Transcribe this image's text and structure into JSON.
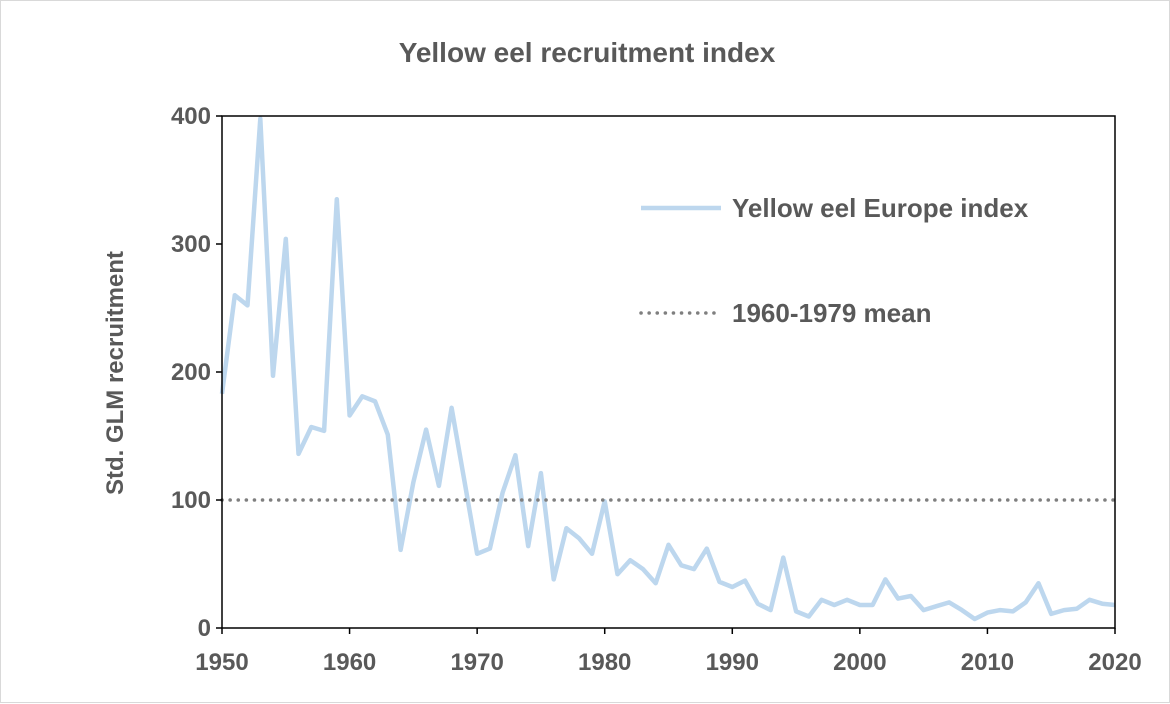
{
  "chart_data": {
    "type": "line",
    "title": "Yellow eel recruitment index",
    "xlabel": "",
    "ylabel": "Std. GLM recruitment",
    "xlim": [
      1950,
      2020
    ],
    "ylim": [
      0,
      400
    ],
    "x_ticks": [
      "1950",
      "1960",
      "1970",
      "1980",
      "1990",
      "2000",
      "2010",
      "2020"
    ],
    "y_ticks": [
      "0",
      "100",
      "200",
      "300",
      "400"
    ],
    "grid": false,
    "legend_position": "top-right",
    "series": [
      {
        "name": "Yellow eel Europe index",
        "color": "#bdd7ee",
        "style": "solid",
        "x": [
          1950,
          1951,
          1952,
          1953,
          1954,
          1955,
          1956,
          1957,
          1958,
          1959,
          1960,
          1961,
          1962,
          1963,
          1964,
          1965,
          1966,
          1967,
          1968,
          1969,
          1970,
          1971,
          1972,
          1973,
          1974,
          1975,
          1976,
          1977,
          1978,
          1979,
          1980,
          1981,
          1982,
          1983,
          1984,
          1985,
          1986,
          1987,
          1988,
          1989,
          1990,
          1991,
          1992,
          1993,
          1994,
          1995,
          1996,
          1997,
          1998,
          1999,
          2000,
          2001,
          2002,
          2003,
          2004,
          2005,
          2006,
          2007,
          2008,
          2009,
          2010,
          2011,
          2012,
          2013,
          2014,
          2015,
          2016,
          2017,
          2018,
          2019,
          2020
        ],
        "values": [
          183,
          260,
          252,
          398,
          197,
          304,
          136,
          157,
          154,
          335,
          166,
          181,
          177,
          151,
          61,
          114,
          155,
          111,
          172,
          115,
          58,
          62,
          106,
          135,
          64,
          121,
          38,
          78,
          70,
          58,
          99,
          42,
          53,
          46,
          35,
          65,
          49,
          46,
          62,
          36,
          32,
          37,
          19,
          14,
          55,
          13,
          9,
          22,
          18,
          22,
          18,
          18,
          38,
          23,
          25,
          14,
          17,
          20,
          14,
          7,
          12,
          14,
          13,
          20,
          35,
          11,
          14,
          15,
          22,
          19,
          18
        ]
      },
      {
        "name": "1960-1979 mean",
        "color": "#7f7f7f",
        "style": "dotted",
        "x": [
          1950,
          2020
        ],
        "values": [
          100,
          100
        ]
      }
    ]
  }
}
